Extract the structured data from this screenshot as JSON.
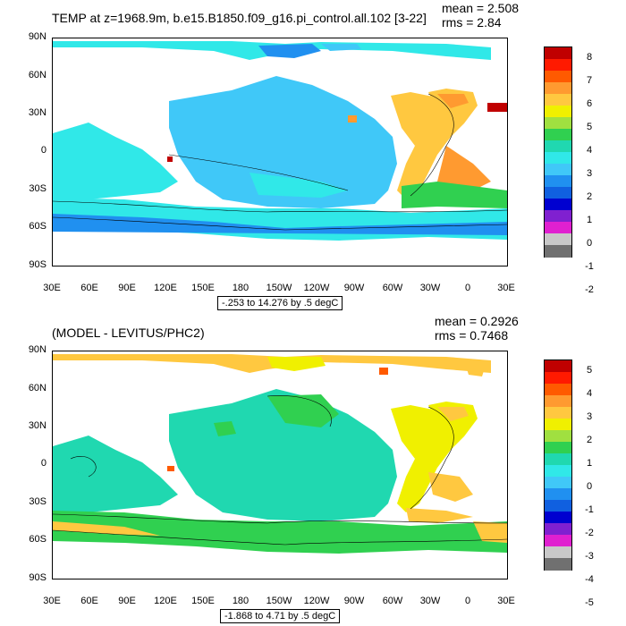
{
  "panels": [
    {
      "title": "TEMP at z=1968.9m, b.e15.B1850.f09_g16.pi_control.all.102 [3-22]",
      "mean": "mean = 2.508",
      "rms": "rms = 2.84",
      "range": "-.253 to 14.276 by .5 degC",
      "lat_labels": [
        "90N",
        "60N",
        "30N",
        "0",
        "30S",
        "60S",
        "90S"
      ],
      "lon_labels": [
        "30E",
        "60E",
        "90E",
        "120E",
        "150E",
        "180",
        "150W",
        "120W",
        "90W",
        "60W",
        "30W",
        "0",
        "30E"
      ],
      "colorbar": {
        "labels": [
          "8",
          "7",
          "6",
          "5",
          "4",
          "3",
          "2",
          "1",
          "0",
          "-1",
          "-2"
        ],
        "colors": [
          "#c00000",
          "#ff1a00",
          "#ff5a00",
          "#ff9a30",
          "#ffc840",
          "#f0f000",
          "#a0e040",
          "#30d050",
          "#20d8b0",
          "#30e8e8",
          "#40c8f8",
          "#2090f0",
          "#1060e0",
          "#0000d0",
          "#8020d0",
          "#e020d0",
          "#c8c8c8",
          "#707070"
        ]
      },
      "map_colors": {
        "background": "#30e8e8",
        "pacific": "#40c8f8",
        "southern": "#2090f0",
        "atlantic": "#ffc840",
        "atlantic_warm": "#ff9a30",
        "south_atl": "#30d050",
        "arctic": "#2090f0",
        "med": "#c00000"
      }
    },
    {
      "title": "(MODEL - LEVITUS/PHC2)",
      "mean": "mean = 0.2926",
      "rms": "rms = 0.7468",
      "range": "-1.868 to 4.71 by .5 degC",
      "lat_labels": [
        "90N",
        "60N",
        "30N",
        "0",
        "30S",
        "60S",
        "90S"
      ],
      "lon_labels": [
        "30E",
        "60E",
        "90E",
        "120E",
        "150E",
        "180",
        "150W",
        "120W",
        "90W",
        "60W",
        "30W",
        "0",
        "30E"
      ],
      "colorbar": {
        "labels": [
          "5",
          "4",
          "3",
          "2",
          "1",
          "0",
          "-1",
          "-2",
          "-3",
          "-4",
          "-5"
        ],
        "colors": [
          "#c00000",
          "#ff1a00",
          "#ff5a00",
          "#ff9a30",
          "#ffc840",
          "#f0f000",
          "#a0e040",
          "#30d050",
          "#20d8b0",
          "#30e8e8",
          "#40c8f8",
          "#2090f0",
          "#1060e0",
          "#0000d0",
          "#8020d0",
          "#e020d0",
          "#c8c8c8",
          "#707070"
        ]
      },
      "map_colors": {
        "background": "#20d8b0",
        "pacific": "#20d8b0",
        "southern": "#30d050",
        "atlantic": "#f0f000",
        "atlantic_warm": "#ffc840",
        "south_atl": "#ffc840",
        "arctic": "#ffc840",
        "med": "#ff5a00"
      }
    }
  ]
}
